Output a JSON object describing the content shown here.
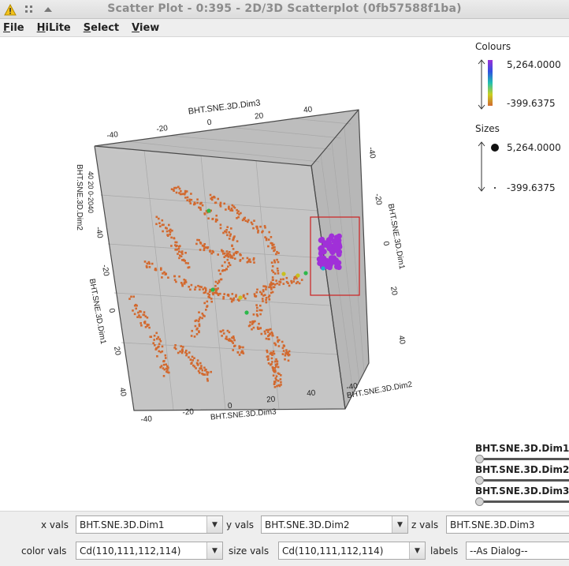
{
  "window": {
    "title": "Scatter Plot - 0:395 - 2D/3D Scatterplot (0fb57588f1ba)",
    "icons": [
      "warning-icon",
      "grid-icon",
      "collapse-up-icon"
    ]
  },
  "menu": {
    "file": "File",
    "hilite": "HiLite",
    "select": "Select",
    "view": "View"
  },
  "axes": {
    "top_label": "BHT.SNE.3D.Dim3",
    "top_ticks": [
      "-40",
      "-20",
      "0",
      "20",
      "40"
    ],
    "left_label": "BHT.SNE.3D.Dim2",
    "left_ticks": "40 20 0-2040",
    "left2_label": "BHT.SNE.3D.Dim1",
    "left2_ticks": [
      "-40",
      "-20",
      "0",
      "20",
      "40"
    ],
    "right_label": "BHT.SNE.3D.Dim1",
    "right_ticks": [
      "-40",
      "-20",
      "0",
      "20",
      "40"
    ],
    "bottom_label": "BHT.SNE.3D.Dim3",
    "bottom_ticks": [
      "-40",
      "-20",
      "0",
      "20",
      "40"
    ],
    "bottom_right_label": "BHT.SNE.3D.Dim2",
    "bottom_right_prefix": "-40"
  },
  "legend": {
    "colours_title": "Colours",
    "colours_max": "5,264.0000",
    "colours_min": "-399.6375",
    "sizes_title": "Sizes",
    "sizes_max": "5,264.0000",
    "sizes_min": "-399.6375"
  },
  "sliders": [
    {
      "label": "BHT.SNE.3D.Dim1"
    },
    {
      "label": "BHT.SNE.3D.Dim2"
    },
    {
      "label": "BHT.SNE.3D.Dim3"
    }
  ],
  "controls": {
    "x_label": "x vals",
    "x_value": "BHT.SNE.3D.Dim1",
    "y_label": "y vals",
    "y_value": "BHT.SNE.3D.Dim2",
    "z_label": "z vals",
    "z_value": "BHT.SNE.3D.Dim3",
    "color_label": "color vals",
    "color_value": "Cd(110,111,112,114)",
    "size_label": "size vals",
    "size_value": "Cd(110,111,112,114)",
    "labels_label": "labels",
    "labels_value": "--As Dialog--"
  },
  "colors": {
    "point_main": "#d2692f",
    "point_cluster": "#a030d8",
    "selection_box": "#cc2020",
    "cube_back": "#c8c8c8"
  }
}
